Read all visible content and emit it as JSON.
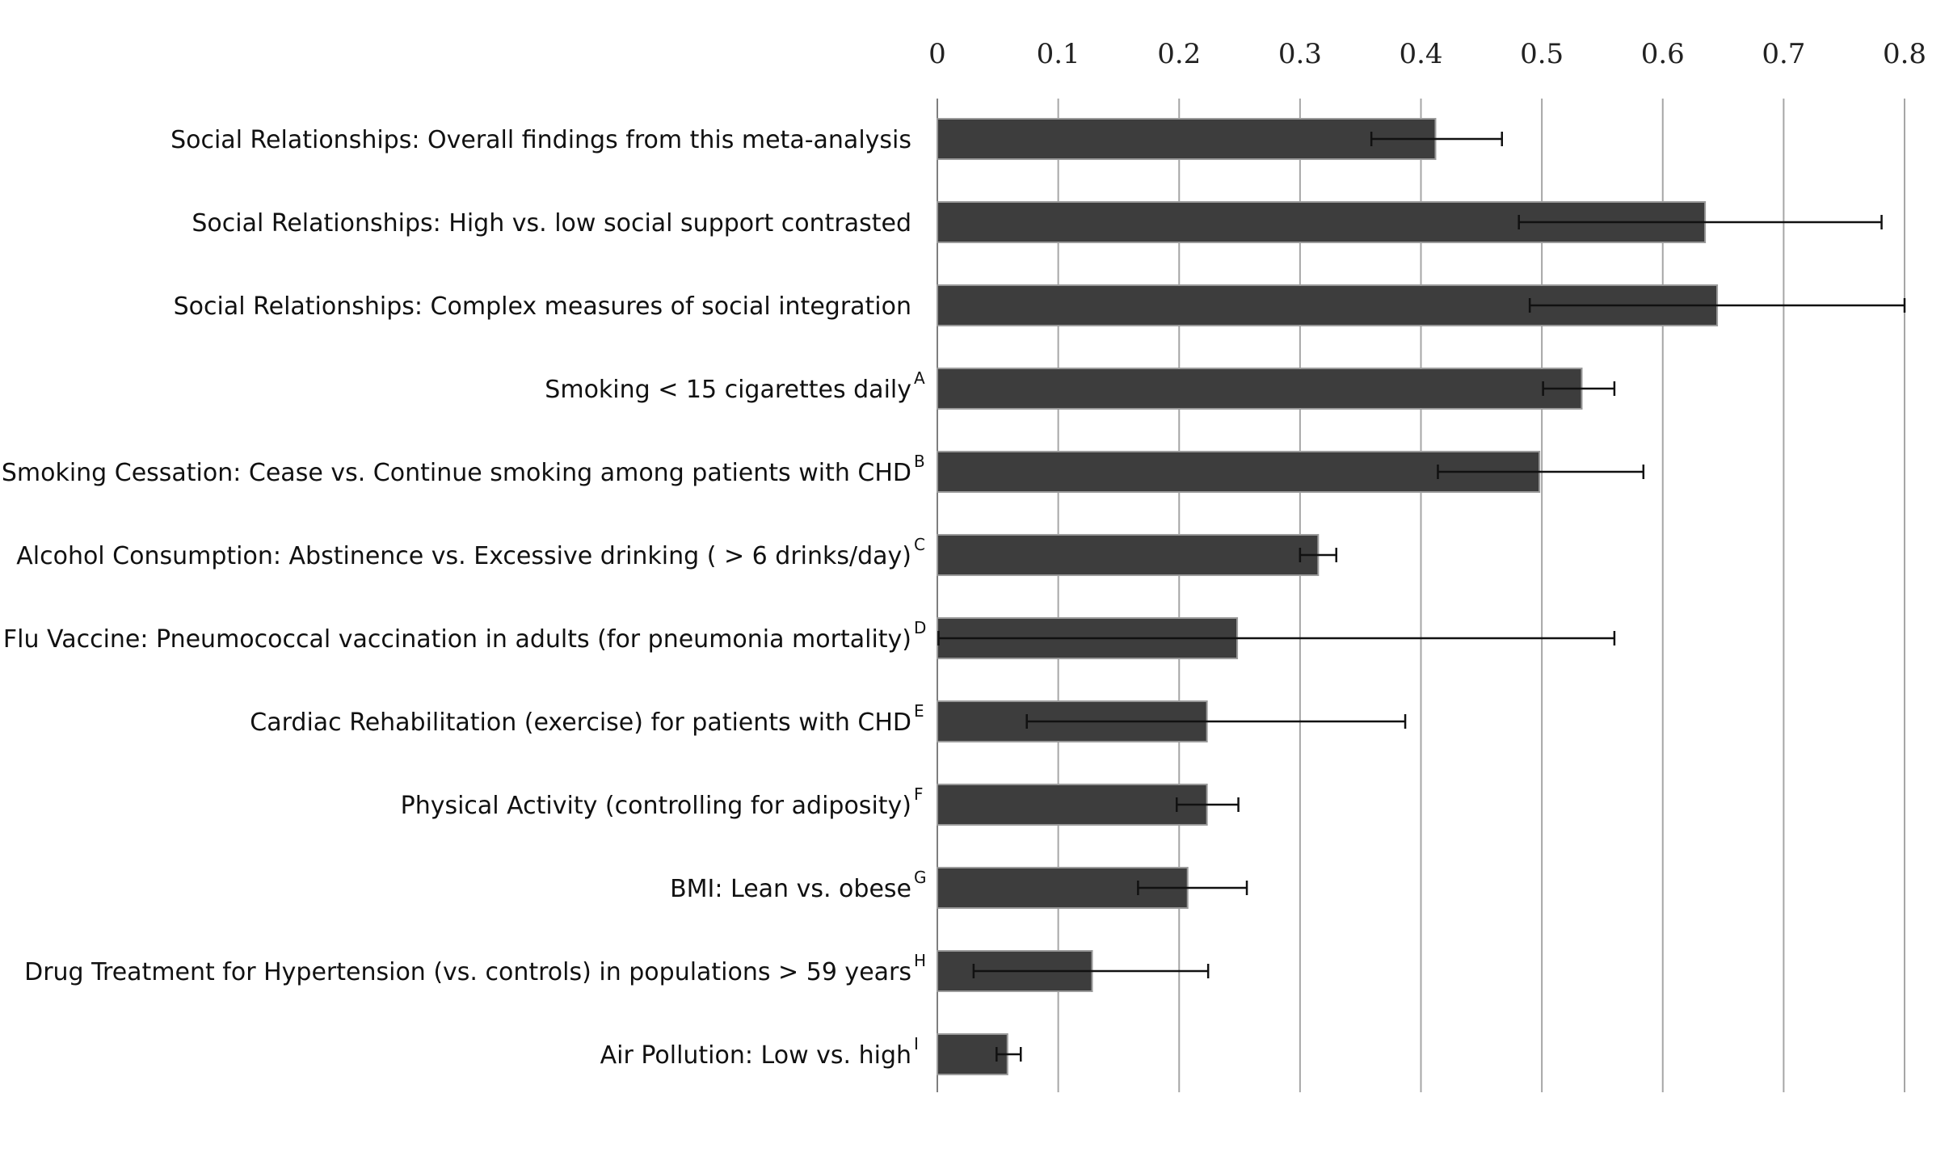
{
  "chart_data": {
    "type": "bar",
    "orientation": "horizontal",
    "title": "",
    "xlabel": "",
    "ylabel": "",
    "xlim": [
      0,
      0.8
    ],
    "x_ticks": [
      0,
      0.1,
      0.2,
      0.3,
      0.4,
      0.5,
      0.6,
      0.7,
      0.8
    ],
    "x_tick_labels": [
      "0",
      "0.1",
      "0.2",
      "0.3",
      "0.4",
      "0.5",
      "0.6",
      "0.7",
      "0.8"
    ],
    "x_axis_position": "top",
    "grid": true,
    "categories": [
      {
        "label": "Social Relationships: Overall findings from this meta-analysis",
        "sup": ""
      },
      {
        "label": "Social Relationships: High vs. low social support contrasted",
        "sup": ""
      },
      {
        "label": "Social Relationships: Complex measures of social integration",
        "sup": ""
      },
      {
        "label": "Smoking < 15 cigarettes daily",
        "sup": "A"
      },
      {
        "label": "Smoking Cessation: Cease vs. Continue smoking among patients with CHD",
        "sup": "B"
      },
      {
        "label": "Alcohol Consumption: Abstinence vs. Excessive drinking ( > 6 drinks/day)",
        "sup": "C"
      },
      {
        "label": "Flu Vaccine: Pneumococcal vaccination in adults (for pneumonia mortality)",
        "sup": "D"
      },
      {
        "label": "Cardiac Rehabilitation (exercise) for patients with CHD",
        "sup": "E"
      },
      {
        "label": "Physical Activity (controlling for adiposity)",
        "sup": "F"
      },
      {
        "label": "BMI: Lean vs. obese",
        "sup": "G"
      },
      {
        "label": "Drug Treatment for Hypertension (vs. controls) in populations > 59 years",
        "sup": "H"
      },
      {
        "label": "Air Pollution: Low vs. high",
        "sup": "I"
      }
    ],
    "values": [
      0.412,
      0.635,
      0.645,
      0.533,
      0.498,
      0.315,
      0.248,
      0.223,
      0.223,
      0.207,
      0.128,
      0.058
    ],
    "error_low": [
      0.359,
      0.481,
      0.49,
      0.501,
      0.414,
      0.3,
      0.001,
      0.074,
      0.198,
      0.166,
      0.03,
      0.049
    ],
    "error_high": [
      0.467,
      0.781,
      0.8,
      0.56,
      0.584,
      0.33,
      0.56,
      0.387,
      0.249,
      0.256,
      0.224,
      0.069
    ],
    "colors": {
      "bar": "#3d3d3d",
      "bar_edge": "#9a9a9a",
      "grid": "#a6a6a6",
      "error": "#111111"
    }
  }
}
